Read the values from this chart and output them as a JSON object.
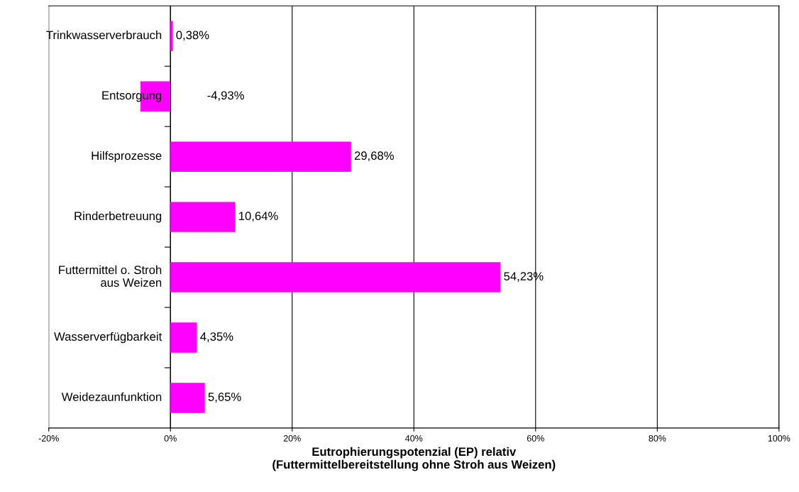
{
  "chart_data": {
    "type": "bar",
    "orientation": "horizontal",
    "xlabel": "Eutrophierungspotenzial (EP) relativ\n(Futtermittelbereitstellung ohne Stroh aus Weizen)",
    "categories": [
      "Trinkwasserverbrauch",
      "Entsorgung",
      "Hilfsprozesse",
      "Rinderbetreuung",
      "Futtermittel o. Stroh\naus Weizen",
      "Wasserverfügbarkeit",
      "Weidezaunfunktion"
    ],
    "values": [
      0.38,
      -4.93,
      29.68,
      10.64,
      54.23,
      4.35,
      5.65
    ],
    "value_labels": [
      "0,38%",
      "-4,93%",
      "29,68%",
      "10,64%",
      "54,23%",
      "4,35%",
      "5,65%"
    ],
    "color": "#ff00ff",
    "xlim": [
      -20,
      100
    ],
    "xticks": [
      {
        "value": -20,
        "label": "-20%"
      },
      {
        "value": 0,
        "label": "0%"
      },
      {
        "value": 20,
        "label": "20%"
      },
      {
        "value": 40,
        "label": "40%"
      },
      {
        "value": 60,
        "label": "60%"
      },
      {
        "value": 80,
        "label": "80%"
      },
      {
        "value": 100,
        "label": "100%"
      }
    ],
    "grid": "x",
    "legend": false
  }
}
